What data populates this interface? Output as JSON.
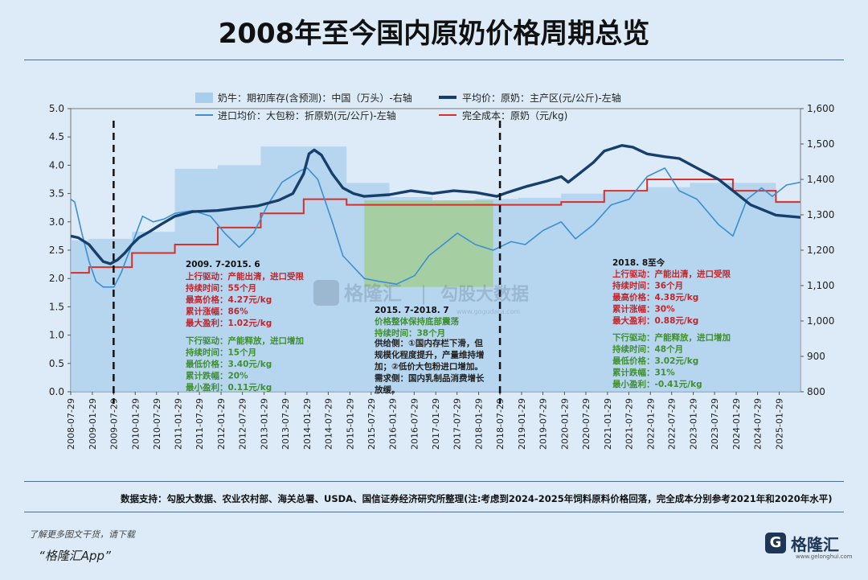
{
  "title": "2008年至今国内原奶价格周期总览",
  "source": "数据支持：勾股大数据、农业农村部、海关总署、USDA、国信证券经济研究所整理(注:考虑到2024-2025年饲料原料价格回落，完全成本分别参考2021年和2020年水平)",
  "footer": {
    "note": "了解更多图文干货，请下载",
    "app": "“格隆汇App”",
    "logo_text": "格隆汇",
    "logo_mark": "G",
    "logo_url": "www.gelonghui.com"
  },
  "watermark": {
    "brand": "格隆汇",
    "divider": "|",
    "site": "勾股大数据",
    "url": "www.gogudata.com"
  },
  "colors": {
    "inventory": "#a9cdec",
    "avg_price": "#173f6c",
    "import_price": "#3c8fd1",
    "cost": "#d6302a",
    "green_box": "#a3cc95",
    "cycle_up": "#c0262c",
    "cycle_down": "#3f8f2f",
    "mid_text": "#222"
  },
  "chart_data": {
    "type": "line",
    "title": "2008年至今国内原奶价格周期总览",
    "legend": [
      {
        "name": "奶牛：期初库存(含预测)：中国（万头）-右轴",
        "kind": "area"
      },
      {
        "name": "平均价：原奶：主产区(元/公斤)-左轴",
        "kind": "thick-line"
      },
      {
        "name": "进口均价：大包粉：折原奶(元/公斤)-左轴",
        "kind": "line"
      },
      {
        "name": "完全成本：原奶（元/kg)",
        "kind": "line"
      }
    ],
    "left_axis": {
      "min": 0,
      "max": 5,
      "ticks": [
        "0.0",
        "0.5",
        "1.0",
        "1.5",
        "2.0",
        "2.5",
        "3.0",
        "3.5",
        "4.0",
        "4.5",
        "5.0"
      ]
    },
    "right_axis": {
      "min": 800,
      "max": 1600,
      "ticks": [
        "800",
        "900",
        "1,000",
        "1,100",
        "1,200",
        "1,300",
        "1,400",
        "1,500",
        "1,600"
      ]
    },
    "x_ticks": [
      "2008-07-29",
      "2009-01-29",
      "2009-07-29",
      "2010-01-29",
      "2010-07-29",
      "2011-01-29",
      "2011-07-29",
      "2012-01-29",
      "2012-07-29",
      "2013-01-29",
      "2013-07-29",
      "2014-01-29",
      "2014-07-29",
      "2015-01-29",
      "2015-07-29",
      "2016-01-29",
      "2016-07-29",
      "2017-01-29",
      "2017-07-29",
      "2018-01-29",
      "2018-07-29",
      "2019-01-29",
      "2019-07-29",
      "2020-01-29",
      "2020-07-29",
      "2021-01-29",
      "2021-07-29",
      "2022-01-29",
      "2022-07-29",
      "2023-01-29",
      "2023-07-29",
      "2024-01-29",
      "2024-07-29",
      "2025-01-29"
    ],
    "x_range": [
      "2008-07-29",
      "2025-07-29"
    ],
    "series": [
      {
        "key": "inventory",
        "name": "奶牛：期初库存(含预测)：中国（万头）-右轴",
        "axis": "right",
        "kind": "step-area",
        "data": [
          [
            "2008-07-29",
            1228
          ],
          [
            "2009-01-01",
            1232
          ],
          [
            "2010-01-01",
            1252
          ],
          [
            "2011-01-01",
            1430
          ],
          [
            "2012-01-01",
            1440
          ],
          [
            "2013-01-01",
            1493
          ],
          [
            "2014-01-01",
            1493
          ],
          [
            "2015-01-01",
            1390
          ],
          [
            "2016-01-01",
            1350
          ],
          [
            "2017-01-01",
            1340
          ],
          [
            "2018-01-01",
            1345
          ],
          [
            "2019-01-01",
            1348
          ],
          [
            "2020-01-01",
            1360
          ],
          [
            "2021-01-01",
            1365
          ],
          [
            "2022-01-01",
            1378
          ],
          [
            "2023-01-01",
            1390
          ],
          [
            "2024-01-01",
            1390
          ],
          [
            "2025-01-01",
            1340
          ],
          [
            "2025-07-29",
            1340
          ]
        ]
      },
      {
        "key": "avg_price",
        "name": "平均价：原奶：主产区(元/公斤)-左轴",
        "axis": "left",
        "kind": "line",
        "data": [
          [
            "2008-07-29",
            2.75
          ],
          [
            "2008-10-01",
            2.72
          ],
          [
            "2009-01-01",
            2.6
          ],
          [
            "2009-03-01",
            2.45
          ],
          [
            "2009-05-01",
            2.3
          ],
          [
            "2009-07-01",
            2.26
          ],
          [
            "2009-09-01",
            2.33
          ],
          [
            "2009-11-01",
            2.45
          ],
          [
            "2010-01-01",
            2.6
          ],
          [
            "2010-03-01",
            2.72
          ],
          [
            "2010-06-01",
            2.83
          ],
          [
            "2010-09-01",
            2.95
          ],
          [
            "2011-01-01",
            3.1
          ],
          [
            "2011-06-01",
            3.18
          ],
          [
            "2012-01-01",
            3.2
          ],
          [
            "2012-06-01",
            3.24
          ],
          [
            "2012-12-01",
            3.28
          ],
          [
            "2013-06-01",
            3.38
          ],
          [
            "2013-10-01",
            3.5
          ],
          [
            "2014-01-01",
            3.85
          ],
          [
            "2014-02-15",
            4.2
          ],
          [
            "2014-04-01",
            4.27
          ],
          [
            "2014-06-01",
            4.18
          ],
          [
            "2014-09-01",
            3.85
          ],
          [
            "2014-12-01",
            3.6
          ],
          [
            "2015-03-01",
            3.5
          ],
          [
            "2015-06-01",
            3.45
          ],
          [
            "2016-01-01",
            3.48
          ],
          [
            "2016-07-01",
            3.55
          ],
          [
            "2017-01-01",
            3.5
          ],
          [
            "2017-07-01",
            3.55
          ],
          [
            "2018-01-01",
            3.52
          ],
          [
            "2018-07-01",
            3.45
          ],
          [
            "2018-10-01",
            3.52
          ],
          [
            "2019-03-01",
            3.62
          ],
          [
            "2019-09-01",
            3.72
          ],
          [
            "2020-01-01",
            3.8
          ],
          [
            "2020-03-01",
            3.7
          ],
          [
            "2020-06-01",
            3.85
          ],
          [
            "2020-10-01",
            4.05
          ],
          [
            "2021-01-01",
            4.25
          ],
          [
            "2021-06-01",
            4.35
          ],
          [
            "2021-09-01",
            4.32
          ],
          [
            "2022-01-01",
            4.2
          ],
          [
            "2022-06-01",
            4.15
          ],
          [
            "2022-10-01",
            4.12
          ],
          [
            "2023-03-01",
            3.95
          ],
          [
            "2023-09-01",
            3.75
          ],
          [
            "2024-01-01",
            3.55
          ],
          [
            "2024-06-01",
            3.3
          ],
          [
            "2025-01-01",
            3.12
          ],
          [
            "2025-07-29",
            3.08
          ]
        ]
      },
      {
        "key": "import_price",
        "name": "进口均价：大包粉：折原奶(元/公斤)-左轴",
        "axis": "left",
        "kind": "line",
        "data": [
          [
            "2008-07-29",
            3.4
          ],
          [
            "2008-09-01",
            3.35
          ],
          [
            "2008-11-01",
            2.8
          ],
          [
            "2009-01-01",
            2.3
          ],
          [
            "2009-03-01",
            1.95
          ],
          [
            "2009-05-01",
            1.85
          ],
          [
            "2009-08-01",
            1.85
          ],
          [
            "2009-10-01",
            2.1
          ],
          [
            "2010-01-01",
            2.6
          ],
          [
            "2010-04-01",
            3.1
          ],
          [
            "2010-07-01",
            3.0
          ],
          [
            "2010-10-01",
            3.05
          ],
          [
            "2011-01-01",
            3.15
          ],
          [
            "2011-06-01",
            3.2
          ],
          [
            "2011-11-01",
            3.1
          ],
          [
            "2012-03-01",
            2.8
          ],
          [
            "2012-07-01",
            2.55
          ],
          [
            "2012-11-01",
            2.8
          ],
          [
            "2013-03-01",
            3.3
          ],
          [
            "2013-07-01",
            3.7
          ],
          [
            "2013-12-01",
            3.9
          ],
          [
            "2014-02-01",
            3.95
          ],
          [
            "2014-05-01",
            3.75
          ],
          [
            "2014-09-01",
            3.0
          ],
          [
            "2014-12-01",
            2.4
          ],
          [
            "2015-06-01",
            2.0
          ],
          [
            "2015-10-01",
            1.95
          ],
          [
            "2016-03-01",
            1.9
          ],
          [
            "2016-08-01",
            2.05
          ],
          [
            "2016-12-01",
            2.4
          ],
          [
            "2017-04-01",
            2.6
          ],
          [
            "2017-08-01",
            2.8
          ],
          [
            "2018-01-01",
            2.6
          ],
          [
            "2018-06-01",
            2.5
          ],
          [
            "2018-11-01",
            2.65
          ],
          [
            "2019-03-01",
            2.6
          ],
          [
            "2019-08-01",
            2.85
          ],
          [
            "2020-01-01",
            3.0
          ],
          [
            "2020-05-01",
            2.7
          ],
          [
            "2020-10-01",
            2.95
          ],
          [
            "2021-03-01",
            3.3
          ],
          [
            "2021-08-01",
            3.4
          ],
          [
            "2022-01-01",
            3.8
          ],
          [
            "2022-06-01",
            3.95
          ],
          [
            "2022-10-01",
            3.55
          ],
          [
            "2023-03-01",
            3.4
          ],
          [
            "2023-09-01",
            2.95
          ],
          [
            "2024-01-01",
            2.75
          ],
          [
            "2024-05-01",
            3.4
          ],
          [
            "2024-09-01",
            3.6
          ],
          [
            "2024-12-01",
            3.45
          ],
          [
            "2025-04-01",
            3.65
          ],
          [
            "2025-07-29",
            3.7
          ]
        ]
      },
      {
        "key": "cost",
        "name": "完全成本：原奶（元/kg)",
        "axis": "left",
        "kind": "step",
        "data": [
          [
            "2008-07-29",
            2.1
          ],
          [
            "2009-01-01",
            2.2
          ],
          [
            "2010-01-01",
            2.45
          ],
          [
            "2011-01-01",
            2.6
          ],
          [
            "2012-01-01",
            2.9
          ],
          [
            "2013-01-01",
            3.15
          ],
          [
            "2014-01-01",
            3.4
          ],
          [
            "2015-01-01",
            3.3
          ],
          [
            "2016-01-01",
            3.3
          ],
          [
            "2017-01-01",
            3.3
          ],
          [
            "2018-01-01",
            3.3
          ],
          [
            "2019-01-01",
            3.3
          ],
          [
            "2020-01-01",
            3.35
          ],
          [
            "2021-01-01",
            3.55
          ],
          [
            "2022-01-01",
            3.75
          ],
          [
            "2023-01-01",
            3.75
          ],
          [
            "2024-01-01",
            3.55
          ],
          [
            "2025-01-01",
            3.35
          ],
          [
            "2025-07-29",
            3.35
          ]
        ]
      }
    ],
    "cycle_markers": [
      "2009-07-29",
      "2018-07-29"
    ],
    "highlight_range": [
      "2015-06-01",
      "2018-06-01"
    ],
    "annotations": {
      "cycle1": {
        "head": "2009. 7-2015. 6",
        "up": [
          "上行驱动：产能出清，进口受限",
          "持续时间：55个月",
          "最高价格：4.27元/kg",
          "累计涨幅：86%",
          "最大盈利：1.02元/kg"
        ],
        "down": [
          "下行驱动：产能释放，进口增加",
          "持续时间：15个月",
          "最低价格：3.40元/kg",
          "累计跌幅：20%",
          "最小盈利：0.11元/kg"
        ]
      },
      "cycle2": {
        "head": "2015. 7-2018. 7",
        "lines": [
          "价格整体保持底部震荡",
          "持续时间：38个月"
        ],
        "body": [
          "供给侧：①国内存栏下滑，但",
          "规模化程度提升，产量维持增",
          "加；②低价大包粉进口增加。",
          "需求侧：国内乳制品消费增长",
          "放缓。"
        ]
      },
      "cycle3": {
        "head": "2018. 8至今",
        "up": [
          "上行驱动：产能出清，进口受限",
          "持续时间：36个月",
          "最高价格：4.38元/kg",
          "累计涨幅：30%",
          "最大盈利：0.88元/kg"
        ],
        "down": [
          "下行驱动：产能释放，进口增加",
          "持续时间：48个月",
          "最低价格：3.02元/kg",
          "累计跌幅：31%",
          "最小盈利：-0.41元/kg"
        ]
      }
    }
  }
}
